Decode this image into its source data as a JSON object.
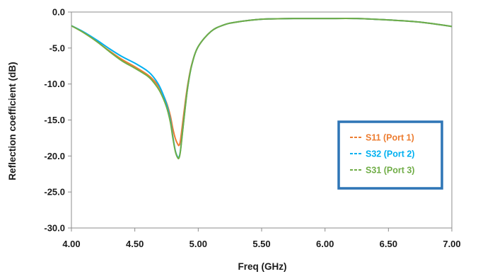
{
  "chart_data": {
    "type": "line",
    "title": "",
    "xlabel": "Freq (GHz)",
    "ylabel": "Reflection coefficient (dB)",
    "xlim": [
      4.0,
      7.0
    ],
    "ylim": [
      -30.0,
      0.0
    ],
    "xticks": [
      "4.00",
      "4.50",
      "5.00",
      "5.50",
      "6.00",
      "6.50",
      "7.00"
    ],
    "yticks": [
      "0.0",
      "-5.0",
      "-10.0",
      "-15.0",
      "-20.0",
      "-25.0",
      "-30.0"
    ],
    "grid": false,
    "legend_position": "right",
    "series": [
      {
        "name": "S11 (Port 1)",
        "color": "#ED7D31",
        "style": "solid",
        "x": [
          4.0,
          4.1,
          4.2,
          4.3,
          4.4,
          4.5,
          4.6,
          4.65,
          4.7,
          4.75,
          4.78,
          4.8,
          4.82,
          4.84,
          4.85,
          4.86,
          4.88,
          4.9,
          4.92,
          4.95,
          5.0,
          5.1,
          5.2,
          5.3,
          5.5,
          5.75,
          6.0,
          6.25,
          6.5,
          6.75,
          7.0
        ],
        "y": [
          -1.9,
          -2.9,
          -4.1,
          -5.4,
          -6.6,
          -7.6,
          -8.7,
          -9.5,
          -10.7,
          -12.6,
          -14.4,
          -16.2,
          -17.6,
          -18.4,
          -18.5,
          -17.8,
          -15.0,
          -12.2,
          -9.8,
          -7.2,
          -4.8,
          -2.7,
          -1.8,
          -1.4,
          -1.0,
          -0.9,
          -0.9,
          -0.9,
          -1.1,
          -1.4,
          -2.0
        ]
      },
      {
        "name": "S32 (Port 2)",
        "color": "#00B0F0",
        "style": "solid",
        "x": [
          4.0,
          4.1,
          4.2,
          4.3,
          4.4,
          4.5,
          4.6,
          4.65,
          4.7,
          4.75,
          4.78,
          4.8,
          4.82,
          4.84,
          4.85,
          4.86,
          4.88,
          4.9,
          4.92,
          4.95,
          5.0,
          5.1,
          5.2,
          5.3,
          5.5,
          5.75,
          6.0,
          6.25,
          6.5,
          6.75,
          7.0
        ],
        "y": [
          -1.9,
          -2.8,
          -3.9,
          -5.1,
          -6.2,
          -7.1,
          -8.2,
          -9.1,
          -10.5,
          -12.8,
          -15.0,
          -17.3,
          -19.3,
          -20.2,
          -20.1,
          -19.2,
          -16.0,
          -12.8,
          -10.1,
          -7.3,
          -4.8,
          -2.7,
          -1.8,
          -1.4,
          -1.0,
          -0.9,
          -0.9,
          -0.9,
          -1.1,
          -1.4,
          -2.0
        ]
      },
      {
        "name": "S31 (Port 3)",
        "color": "#70AD47",
        "style": "solid",
        "x": [
          4.0,
          4.1,
          4.2,
          4.3,
          4.4,
          4.5,
          4.6,
          4.65,
          4.7,
          4.75,
          4.78,
          4.8,
          4.82,
          4.84,
          4.85,
          4.86,
          4.88,
          4.9,
          4.92,
          4.95,
          5.0,
          5.1,
          5.2,
          5.3,
          5.5,
          5.75,
          6.0,
          6.25,
          6.5,
          6.75,
          7.0
        ],
        "y": [
          -1.9,
          -2.9,
          -4.1,
          -5.5,
          -6.8,
          -7.8,
          -8.9,
          -9.8,
          -11.1,
          -13.2,
          -15.3,
          -17.5,
          -19.4,
          -20.3,
          -20.2,
          -19.3,
          -16.1,
          -12.9,
          -10.1,
          -7.3,
          -4.8,
          -2.7,
          -1.8,
          -1.4,
          -1.0,
          -0.9,
          -0.9,
          -0.9,
          -1.1,
          -1.4,
          -2.0
        ]
      }
    ],
    "legend": {
      "border_color": "#2E75B6",
      "entries": [
        {
          "label": "S11 (Port 1)",
          "color": "#ED7D31"
        },
        {
          "label": "S32 (Port 2)",
          "color": "#00B0F0"
        },
        {
          "label": "S31 (Port 3)",
          "color": "#70AD47"
        }
      ]
    }
  }
}
